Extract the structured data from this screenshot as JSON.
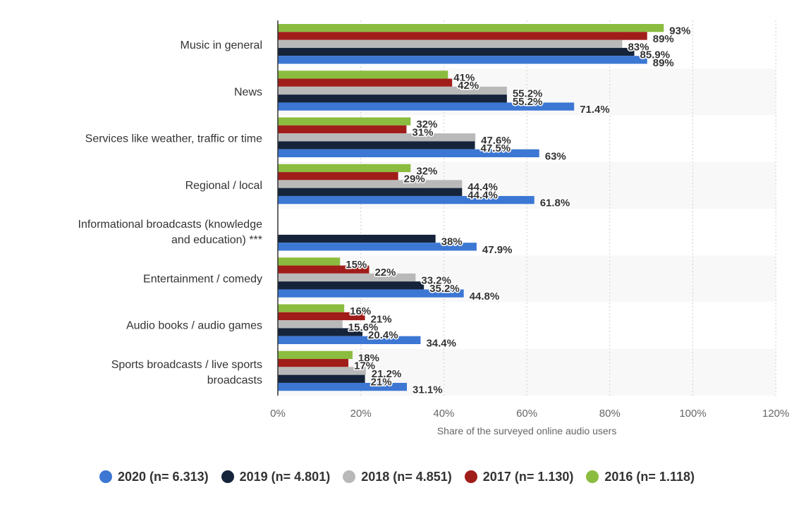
{
  "chart_data": {
    "type": "bar",
    "orientation": "horizontal",
    "categories": [
      "Music in general",
      "News",
      "Services like weather, traffic or time",
      "Regional / local",
      "Informational broadcasts (knowledge and education) ***",
      "Entertainment / comedy",
      "Audio books / audio games",
      "Sports broadcasts / live sports broadcasts"
    ],
    "series": [
      {
        "name": "2016 (n= 1.118)",
        "color": "#8bbc3f",
        "values": [
          93,
          41,
          32,
          32,
          null,
          15,
          16,
          18
        ],
        "labels": [
          "93%",
          "41%",
          "32%",
          "32%",
          null,
          "15%",
          "16%",
          "18%"
        ]
      },
      {
        "name": "2017 (n= 1.130)",
        "color": "#a01d1a",
        "values": [
          89,
          42,
          31,
          29,
          null,
          22,
          21,
          17
        ],
        "labels": [
          "89%",
          "42%",
          "31%",
          "29%",
          null,
          "22%",
          "21%",
          "17%"
        ]
      },
      {
        "name": "2018 (n= 4.851)",
        "color": "#b9b9b9",
        "values": [
          83,
          55.2,
          47.6,
          44.4,
          null,
          33.2,
          15.6,
          21.2
        ],
        "labels": [
          "83%",
          "55.2%",
          "47.6%",
          "44.4%",
          null,
          "33.2%",
          "15.6%",
          "21.2%"
        ]
      },
      {
        "name": "2019 (n= 4.801)",
        "color": "#15243a",
        "values": [
          85.9,
          55.2,
          47.5,
          44.4,
          38,
          35.2,
          20.4,
          21
        ],
        "labels": [
          "85.9%",
          "55.2%",
          "47.5%",
          "44.4%",
          "38%",
          "35.2%",
          "20.4%",
          "21%"
        ]
      },
      {
        "name": "2020 (n= 6.313)",
        "color": "#3c77d4",
        "values": [
          89,
          71.4,
          63,
          61.8,
          47.9,
          44.8,
          34.4,
          31.1
        ],
        "labels": [
          "89%",
          "71.4%",
          "63%",
          "61.8%",
          "47.9%",
          "44.8%",
          "34.4%",
          "31.1%"
        ]
      }
    ],
    "xlabel": "Share of the surveyed online audio users",
    "xlim": [
      0,
      120
    ],
    "xticks": [
      "0%",
      "20%",
      "40%",
      "60%",
      "80%",
      "100%",
      "120%"
    ],
    "grid": "vertical dashed",
    "legend": {
      "position": "bottom",
      "order": [
        {
          "label": "2020 (n= 6.313)",
          "color": "#3c77d4"
        },
        {
          "label": "2019 (n= 4.801)",
          "color": "#15243a"
        },
        {
          "label": "2018 (n= 4.851)",
          "color": "#b9b9b9"
        },
        {
          "label": "2017 (n= 1.130)",
          "color": "#a01d1a"
        },
        {
          "label": "2016 (n= 1.118)",
          "color": "#8bbc3f"
        }
      ]
    }
  }
}
